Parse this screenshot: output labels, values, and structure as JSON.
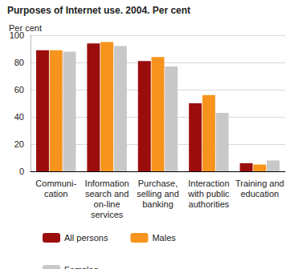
{
  "chart_data": {
    "type": "bar",
    "title": "Purposes of Internet use. 2004. Per cent",
    "ylabel": "Per cent",
    "categories": [
      "Communi-\ncation",
      "Information\nsearch and\non-line\nservices",
      "Purchase,\nselling and\nbanking",
      "Interaction\nwith public\nauthorities",
      "Training and\neducation"
    ],
    "series": [
      {
        "name": "All persons",
        "color": "#9b0d0d",
        "values": [
          89,
          94,
          81,
          50,
          6
        ]
      },
      {
        "name": "Males",
        "color": "#f7941d",
        "values": [
          89,
          95,
          84,
          56,
          5
        ]
      },
      {
        "name": "Females",
        "color": "#c8c8c8",
        "values": [
          88,
          92,
          77,
          43,
          8
        ]
      }
    ],
    "ylim": [
      0,
      100
    ],
    "yticks": [
      0,
      20,
      40,
      60,
      80,
      100
    ],
    "grid": true,
    "legend": "bottom"
  }
}
